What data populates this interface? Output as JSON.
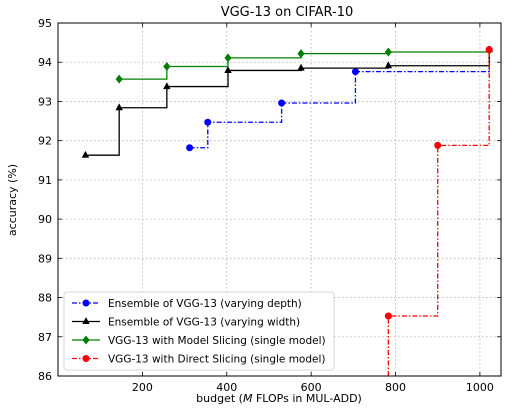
{
  "chart_data": {
    "type": "line",
    "title": "VGG-13 on CIFAR-10",
    "xlabel": "budget (M FLOPs in MUL-ADD)",
    "ylabel": "accuracy (%)",
    "xlim": [
      0,
      1050
    ],
    "ylim": [
      86,
      95
    ],
    "xticks": [
      200,
      400,
      600,
      800,
      1000
    ],
    "yticks": [
      86,
      87,
      88,
      89,
      90,
      91,
      92,
      93,
      94,
      95
    ],
    "grid": true,
    "legend_position": "lower-left",
    "step_style": "post",
    "series": [
      {
        "name": "Ensemble of VGG-13 (varying depth)",
        "color": "#0000ff",
        "marker": "circle",
        "linestyle": "dashdot",
        "x": [
          312,
          355,
          530,
          705,
          1022
        ],
        "y": [
          91.82,
          92.47,
          92.96,
          93.76,
          94.32
        ]
      },
      {
        "name": "Ensemble of VGG-13 (varying width)",
        "color": "#000000",
        "marker": "triangle",
        "linestyle": "solid",
        "x": [
          65,
          145,
          258,
          403,
          576,
          783,
          1022
        ],
        "y": [
          91.63,
          92.84,
          93.38,
          93.79,
          93.85,
          93.91,
          94.32
        ]
      },
      {
        "name": "VGG-13 with Model Slicing (single model)",
        "color": "#008000",
        "marker": "diamond",
        "linestyle": "solid",
        "x": [
          145,
          258,
          403,
          576,
          783,
          1022
        ],
        "y": [
          93.57,
          93.89,
          94.11,
          94.22,
          94.26,
          94.3
        ]
      },
      {
        "name": "VGG-13 with Direct Slicing (single model)",
        "color": "#ff0000",
        "marker": "circle",
        "linestyle": "dashdot",
        "x": [
          783,
          900,
          1022
        ],
        "y": [
          87.53,
          91.88,
          94.32
        ]
      }
    ]
  }
}
